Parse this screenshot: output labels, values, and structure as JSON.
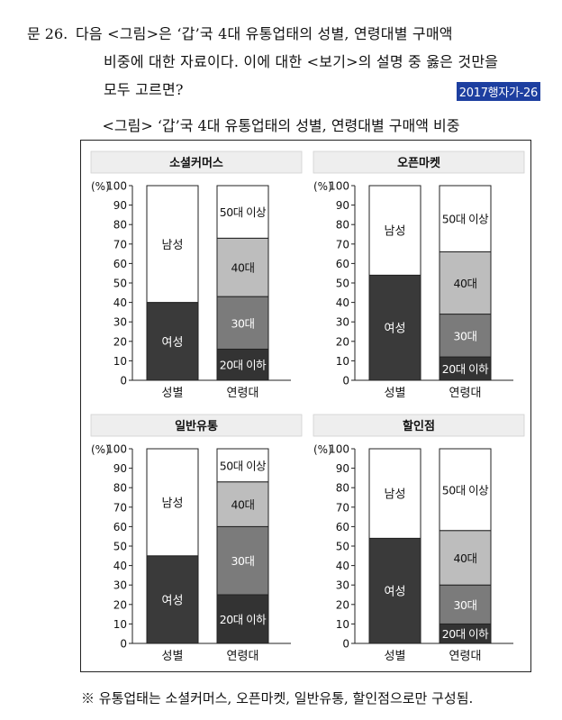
{
  "question": {
    "number": "문 26.",
    "line1": "다음 <그림>은 ‘갑’국 4대 유통업태의 성별, 연령대별 구매액",
    "line2": "비중에 대한 자료이다. 이에 대한 <보기>의 설명 중 옳은 것만을",
    "line3": "모두 고르면?",
    "source_tag": "2017행자가-26"
  },
  "figure_caption": "<그림> ‘갑’국 4대 유통업태의 성별, 연령대별 구매액 비중",
  "footnote": "※  유통업태는 소셜커머스, 오픈마켓, 일반유통, 할인점으로만 구성됨.",
  "colors": {
    "female": "#3a3a3a",
    "male": "#ffffff",
    "age20": "#333333",
    "age30": "#7b7b7b",
    "age40": "#bdbdbd",
    "age50": "#ffffff",
    "header_bg": "#eeeeee"
  },
  "chart_data": [
    {
      "type": "bar",
      "stacked": true,
      "title": "소셜커머스",
      "ylabel": "(%)",
      "ylim": [
        0,
        100
      ],
      "yticks": [
        0,
        10,
        20,
        30,
        40,
        50,
        60,
        70,
        80,
        90,
        100
      ],
      "categories": [
        "성별",
        "연령대"
      ],
      "gender": [
        {
          "name": "여성",
          "value": 40
        },
        {
          "name": "남성",
          "value": 60
        }
      ],
      "age": [
        {
          "name": "20대 이하",
          "value": 16
        },
        {
          "name": "30대",
          "value": 27
        },
        {
          "name": "40대",
          "value": 30
        },
        {
          "name": "50대 이상",
          "value": 27
        }
      ]
    },
    {
      "type": "bar",
      "stacked": true,
      "title": "오픈마켓",
      "ylabel": "(%)",
      "ylim": [
        0,
        100
      ],
      "yticks": [
        0,
        10,
        20,
        30,
        40,
        50,
        60,
        70,
        80,
        90,
        100
      ],
      "categories": [
        "성별",
        "연령대"
      ],
      "gender": [
        {
          "name": "여성",
          "value": 54
        },
        {
          "name": "남성",
          "value": 46
        }
      ],
      "age": [
        {
          "name": "20대 이하",
          "value": 12
        },
        {
          "name": "30대",
          "value": 22
        },
        {
          "name": "40대",
          "value": 32
        },
        {
          "name": "50대 이상",
          "value": 34
        }
      ]
    },
    {
      "type": "bar",
      "stacked": true,
      "title": "일반유통",
      "ylabel": "(%)",
      "ylim": [
        0,
        100
      ],
      "yticks": [
        0,
        10,
        20,
        30,
        40,
        50,
        60,
        70,
        80,
        90,
        100
      ],
      "categories": [
        "성별",
        "연령대"
      ],
      "gender": [
        {
          "name": "여성",
          "value": 45
        },
        {
          "name": "남성",
          "value": 55
        }
      ],
      "age": [
        {
          "name": "20대 이하",
          "value": 25
        },
        {
          "name": "30대",
          "value": 35
        },
        {
          "name": "40대",
          "value": 23
        },
        {
          "name": "50대 이상",
          "value": 17
        }
      ]
    },
    {
      "type": "bar",
      "stacked": true,
      "title": "할인점",
      "ylabel": "(%)",
      "ylim": [
        0,
        100
      ],
      "yticks": [
        0,
        10,
        20,
        30,
        40,
        50,
        60,
        70,
        80,
        90,
        100
      ],
      "categories": [
        "성별",
        "연령대"
      ],
      "gender": [
        {
          "name": "여성",
          "value": 54
        },
        {
          "name": "남성",
          "value": 46
        }
      ],
      "age": [
        {
          "name": "20대 이하",
          "value": 10
        },
        {
          "name": "30대",
          "value": 20
        },
        {
          "name": "40대",
          "value": 28
        },
        {
          "name": "50대 이상",
          "value": 42
        }
      ]
    }
  ]
}
